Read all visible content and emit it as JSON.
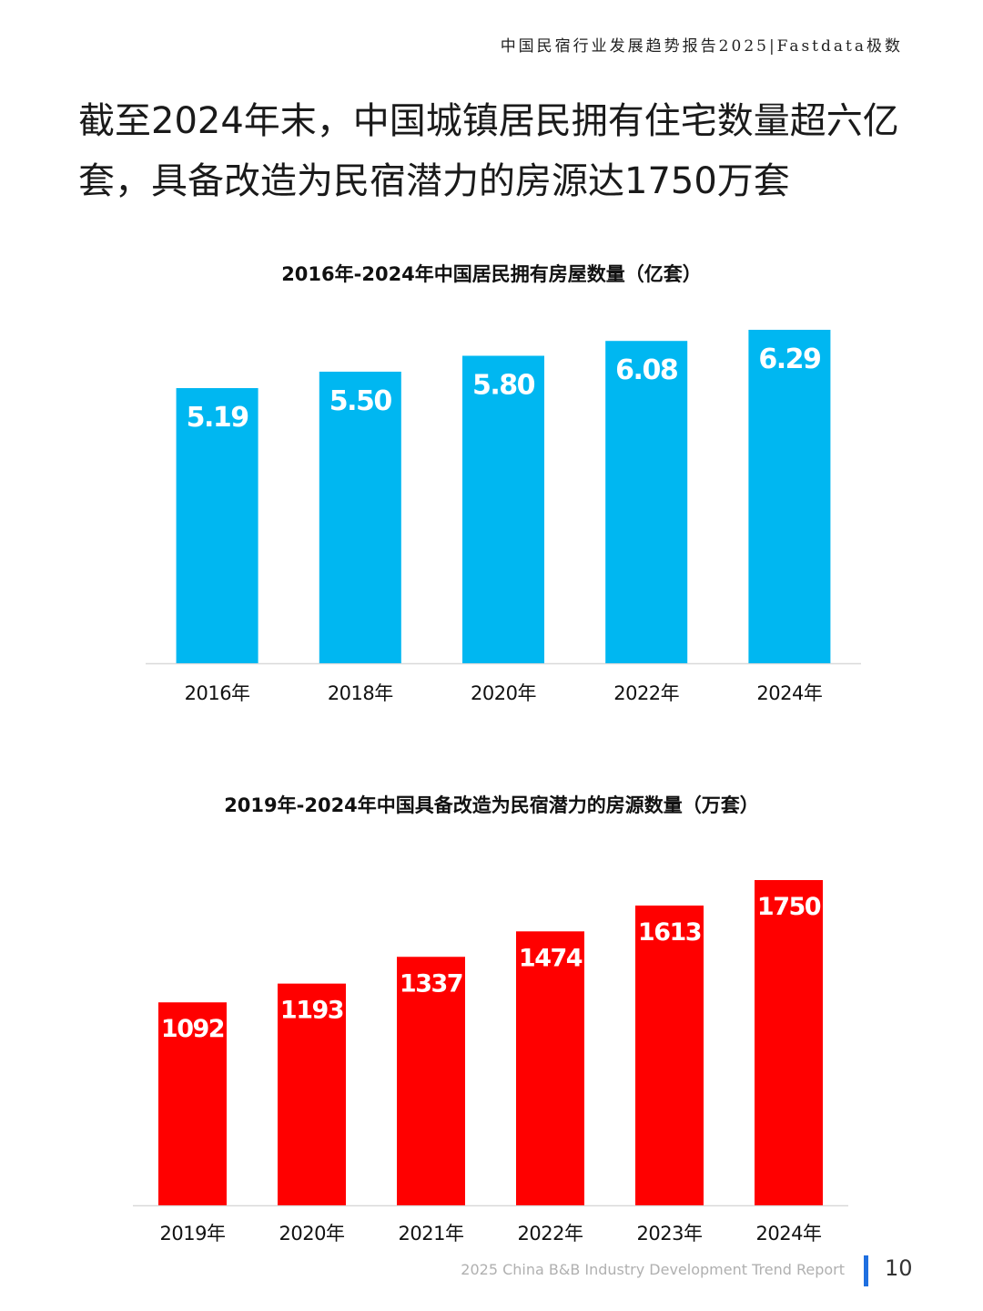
{
  "header": {
    "brand": "中国民宿行业发展趋势报告2025|Fastdata极数"
  },
  "headline": {
    "line1": "截至2024年末，中国城镇居民拥有住宅数量超六亿",
    "line2": "套，具备改造为民宿潜力的房源达1750万套"
  },
  "chart_data": [
    {
      "type": "bar",
      "title": "2016年-2024年中国居民拥有房屋数量（亿套）",
      "categories": [
        "2016年",
        "2018年",
        "2020年",
        "2022年",
        "2024年"
      ],
      "values": [
        5.19,
        5.5,
        5.8,
        6.08,
        6.29
      ],
      "value_labels": [
        "5.19",
        "5.50",
        "5.80",
        "6.08",
        "6.29"
      ],
      "ylim": [
        0,
        6.29
      ],
      "color": "#00B7F1",
      "grid": false,
      "legend": "none"
    },
    {
      "type": "bar",
      "title": "2019年-2024年中国具备改造为民宿潜力的房源数量（万套）",
      "categories": [
        "2019年",
        "2020年",
        "2021年",
        "2022年",
        "2023年",
        "2024年"
      ],
      "values": [
        1092,
        1193,
        1337,
        1474,
        1613,
        1750
      ],
      "value_labels": [
        "1092",
        "1193",
        "1337",
        "1474",
        "1613",
        "1750"
      ],
      "ylim": [
        0,
        1750
      ],
      "color": "#FF0000",
      "grid": false,
      "legend": "none"
    }
  ],
  "footer": {
    "report_name": "2025 China B&B Industry Development Trend Report",
    "page_number": "10"
  }
}
